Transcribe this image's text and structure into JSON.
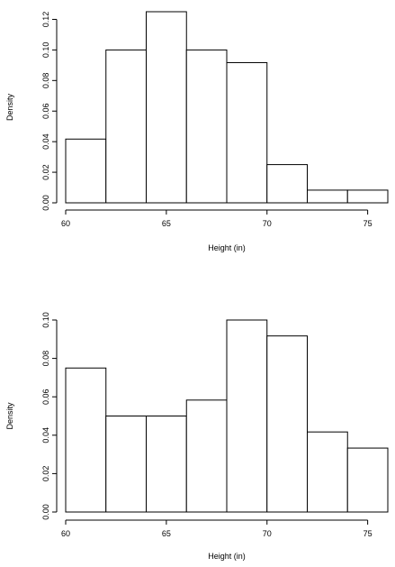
{
  "chart_data": [
    {
      "type": "bar",
      "bin_edges": [
        60,
        62,
        64,
        66,
        68,
        70,
        72,
        74,
        76
      ],
      "values": [
        0.0417,
        0.1,
        0.125,
        0.1,
        0.0917,
        0.025,
        0.0083,
        0.0083
      ],
      "xlabel": "Height (in)",
      "ylabel": "Density",
      "xticks": [
        60,
        65,
        70,
        75
      ],
      "xtick_labels": [
        "60",
        "65",
        "70",
        "75"
      ],
      "yticks": [
        0,
        0.02,
        0.04,
        0.06,
        0.08,
        0.1,
        0.12
      ],
      "ytick_labels": [
        "0.00",
        "0.02",
        "0.04",
        "0.06",
        "0.08",
        "0.10",
        "0.12"
      ],
      "xlim": [
        60,
        76
      ],
      "ylim": [
        0,
        0.125
      ],
      "grid": false
    },
    {
      "type": "bar",
      "bin_edges": [
        60,
        62,
        64,
        66,
        68,
        70,
        72,
        74,
        76
      ],
      "values": [
        0.075,
        0.05,
        0.05,
        0.0583,
        0.1,
        0.0917,
        0.0417,
        0.0333
      ],
      "xlabel": "Height (in)",
      "ylabel": "Density",
      "xticks": [
        60,
        65,
        70,
        75
      ],
      "xtick_labels": [
        "60",
        "65",
        "70",
        "75"
      ],
      "yticks": [
        0,
        0.02,
        0.04,
        0.06,
        0.08,
        0.1
      ],
      "ytick_labels": [
        "0.00",
        "0.02",
        "0.04",
        "0.06",
        "0.08",
        "0.10"
      ],
      "xlim": [
        60,
        76
      ],
      "ylim": [
        0,
        0.1
      ],
      "grid": false
    }
  ]
}
